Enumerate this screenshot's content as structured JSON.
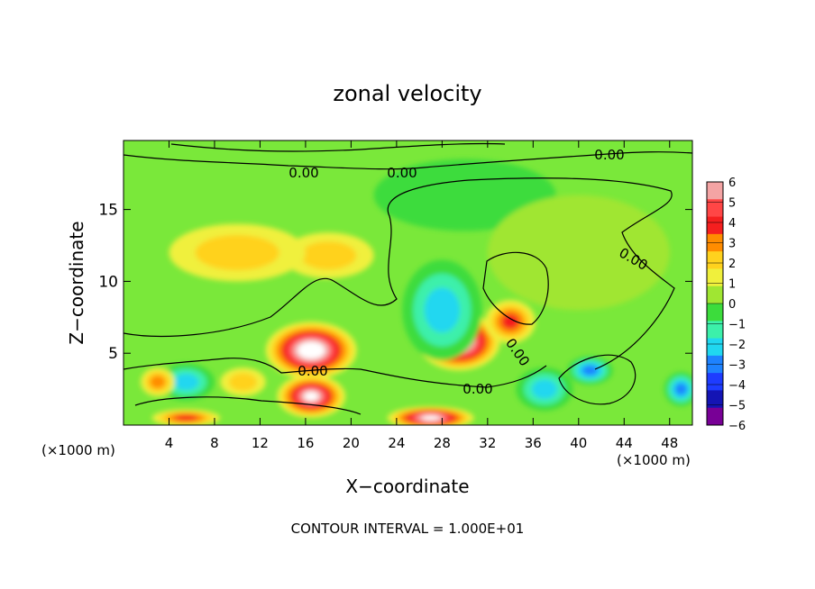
{
  "chart_data": {
    "type": "heatmap",
    "title": "zonal velocity",
    "xlabel": "X−coordinate",
    "ylabel": "Z−coordinate",
    "x_unit_left": "(×1000 m)",
    "x_unit_right": "(×1000 m)",
    "xlim": [
      0,
      50
    ],
    "ylim": [
      0,
      19.8
    ],
    "x_ticks": [
      4,
      8,
      12,
      16,
      20,
      24,
      28,
      32,
      36,
      40,
      44,
      48
    ],
    "y_ticks": [
      5,
      10,
      15
    ],
    "grid": false,
    "footer": "CONTOUR INTERVAL = 1.000E+01",
    "contour_labels": [
      "0.00",
      "0.00",
      "0.00",
      "0.00",
      "0.00",
      "0.00",
      "0.00"
    ],
    "colorbar": {
      "placement": "right",
      "levels": [
        6,
        5,
        4,
        3,
        2,
        1,
        0,
        -1,
        -2,
        -3,
        -4,
        -5,
        -6
      ],
      "labels": [
        "6",
        "5",
        "4",
        "3",
        "2",
        "1",
        "0",
        "−1",
        "−2",
        "−3",
        "−4",
        "−5",
        "−6"
      ],
      "colors": [
        "#f4a4a4",
        "#ff4646",
        "#f51f1f",
        "#ff8c00",
        "#ffd21e",
        "#f0f03c",
        "#a0e632",
        "#3cdc3c",
        "#3cf0aa",
        "#20d7f0",
        "#1e82ff",
        "#1e3cff",
        "#1414b4",
        "#780096"
      ],
      "over_color": "#ffffff"
    },
    "features": [
      {
        "x": 16.5,
        "z": 5.2,
        "rx": 4.0,
        "ry": 2.0,
        "value": 8
      },
      {
        "x": 16.5,
        "z": 2.0,
        "rx": 3.0,
        "ry": 1.5,
        "value": 7
      },
      {
        "x": 29.5,
        "z": 5.8,
        "rx": 3.6,
        "ry": 2.0,
        "value": 8
      },
      {
        "x": 27.0,
        "z": 0.5,
        "rx": 3.8,
        "ry": 0.8,
        "value": 7
      },
      {
        "x": 34.0,
        "z": 7.2,
        "rx": 2.2,
        "ry": 1.5,
        "value": 4
      },
      {
        "x": 18.0,
        "z": 11.8,
        "rx": 4.0,
        "ry": 1.6,
        "value": 2
      },
      {
        "x": 10.0,
        "z": 12.0,
        "rx": 6.0,
        "ry": 2.0,
        "value": 1.6
      },
      {
        "x": 28.0,
        "z": 8.0,
        "rx": 3.5,
        "ry": 3.5,
        "value": -3
      },
      {
        "x": 37.0,
        "z": 2.5,
        "rx": 2.5,
        "ry": 1.5,
        "value": -3
      },
      {
        "x": 41.0,
        "z": 3.8,
        "rx": 2.0,
        "ry": 1.0,
        "value": -4
      },
      {
        "x": 5.5,
        "z": 3.0,
        "rx": 2.5,
        "ry": 1.3,
        "value": -3
      },
      {
        "x": 3.0,
        "z": 3.0,
        "rx": 1.5,
        "ry": 1.0,
        "value": 3
      },
      {
        "x": 10.5,
        "z": 3.0,
        "rx": 2.0,
        "ry": 1.0,
        "value": 2
      },
      {
        "x": 5.5,
        "z": 0.5,
        "rx": 3.0,
        "ry": 0.6,
        "value": 4
      },
      {
        "x": 30.0,
        "z": 16.0,
        "rx": 8.0,
        "ry": 2.5,
        "value": -0.8
      },
      {
        "x": 49.0,
        "z": 2.5,
        "rx": 1.5,
        "ry": 1.2,
        "value": -4
      },
      {
        "x": 40.0,
        "z": 12.0,
        "rx": 8.0,
        "ry": 4.0,
        "value": 0.4
      }
    ]
  }
}
